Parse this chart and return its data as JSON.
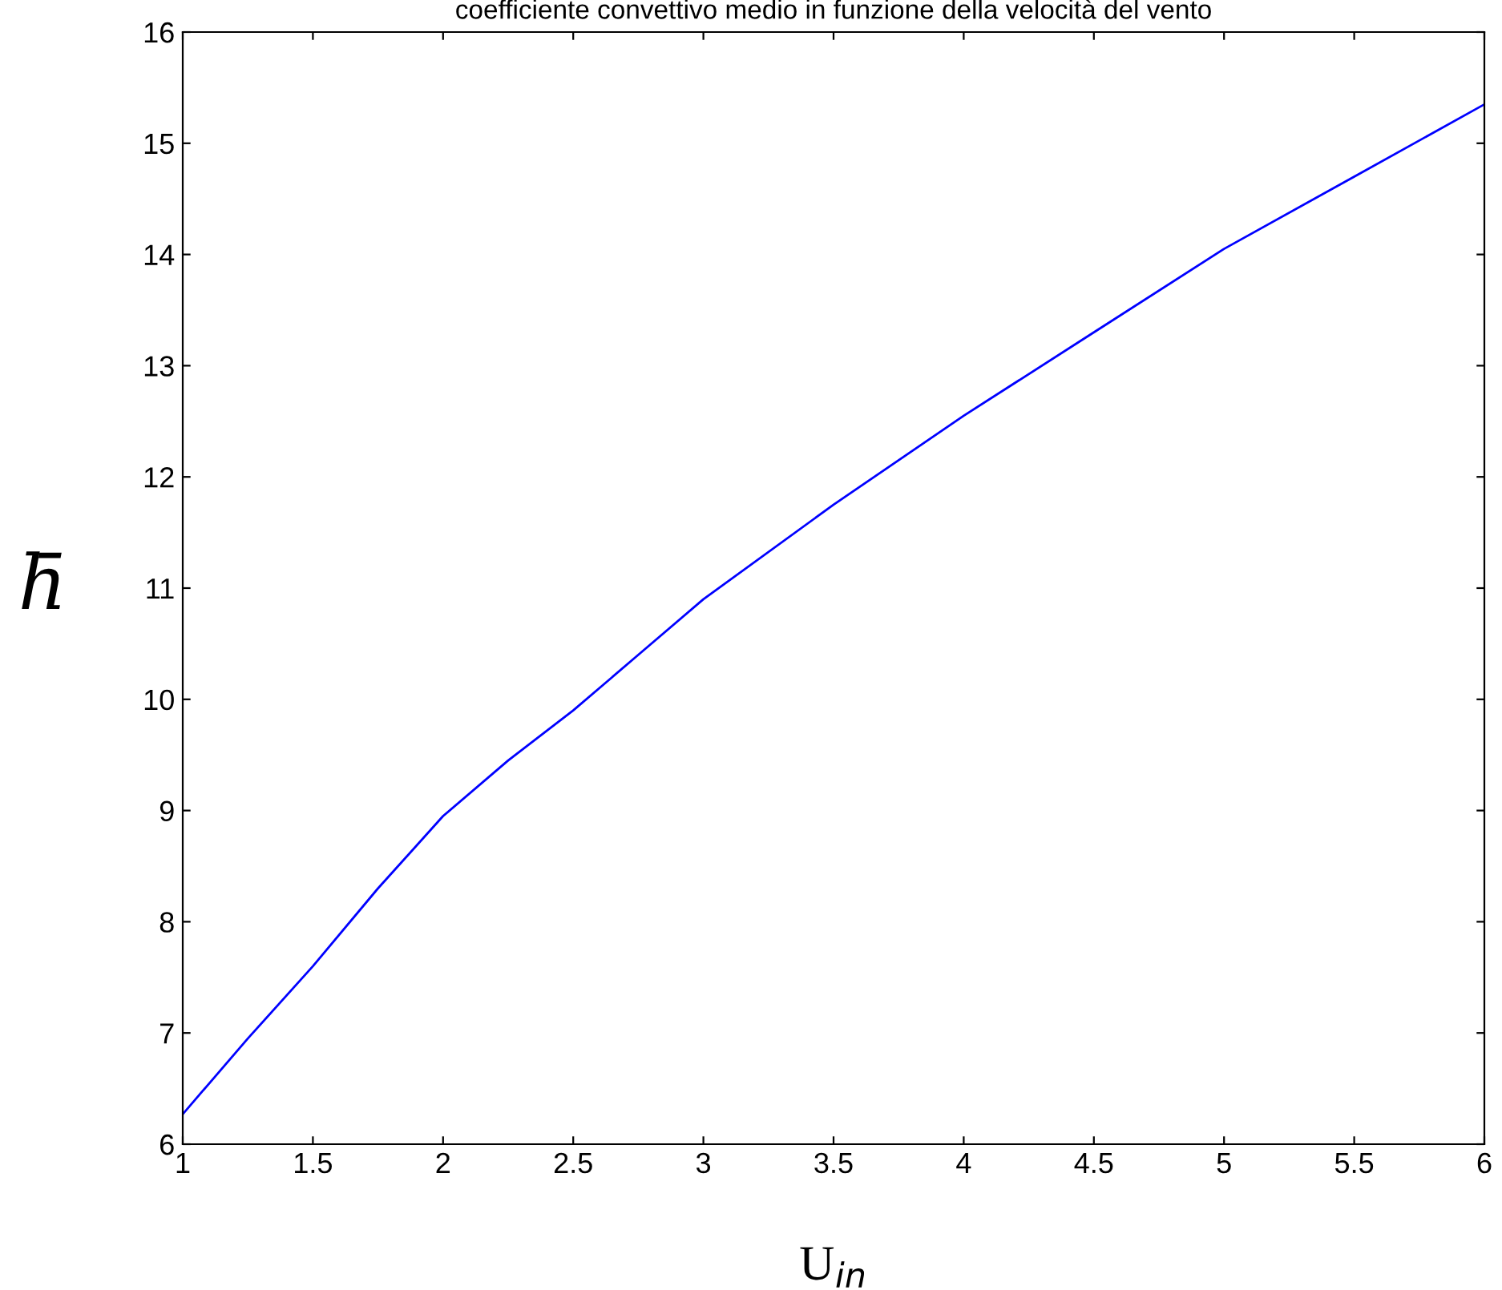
{
  "chart_data": {
    "type": "line",
    "title": "coefficiente convettivo medio in funzione della velocità del vento",
    "xlabel": "U$_{in}$",
    "ylabel": "h̄",
    "x": [
      1,
      1.25,
      1.5,
      1.75,
      2,
      2.25,
      2.5,
      2.75,
      3,
      3.5,
      4,
      4.5,
      5,
      5.5,
      6
    ],
    "series": [
      {
        "color": "#0000ff",
        "values": [
          6.27,
          6.95,
          7.6,
          8.3,
          8.95,
          9.45,
          9.9,
          10.4,
          10.9,
          11.75,
          12.55,
          13.3,
          14.05,
          14.7,
          15.35
        ]
      }
    ],
    "xlim": [
      1,
      6
    ],
    "xticks": [
      1,
      1.5,
      2,
      2.5,
      3,
      3.5,
      4,
      4.5,
      5,
      5.5,
      6
    ],
    "ylim": [
      6,
      16
    ],
    "yticks": [
      6,
      7,
      8,
      9,
      10,
      11,
      12,
      13,
      14,
      15,
      16
    ],
    "grid": false,
    "legend": false,
    "marker": "none",
    "line_style": "solid"
  }
}
